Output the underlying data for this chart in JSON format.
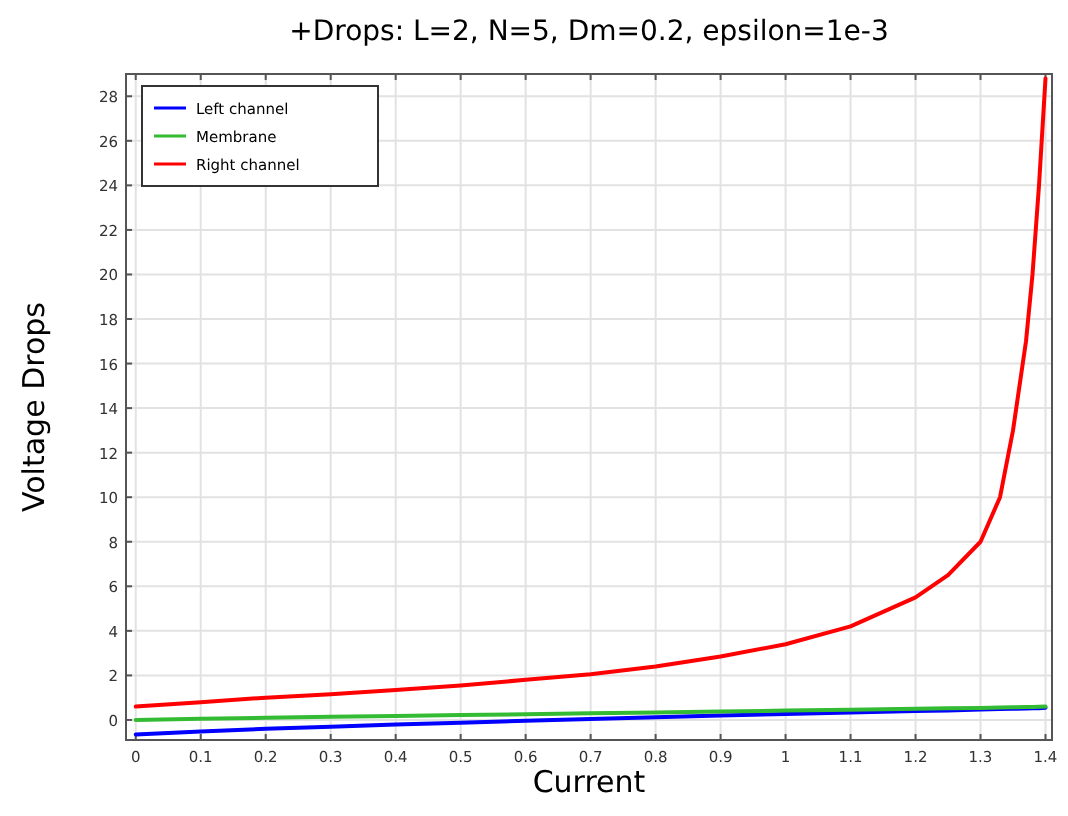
{
  "chart_data": {
    "type": "line",
    "title": "+Drops: L=2, N=5, Dm=0.2, epsilon=1e-3",
    "xlabel": "Current",
    "ylabel": "Voltage Drops",
    "x": [
      0,
      0.1,
      0.2,
      0.3,
      0.4,
      0.5,
      0.6,
      0.7,
      0.8,
      0.9,
      1,
      1.1,
      1.2,
      1.25,
      1.3,
      1.33,
      1.35,
      1.37,
      1.38,
      1.39,
      1.4
    ],
    "series": [
      {
        "name": "Left channel",
        "color": "#0000ff",
        "values": [
          -0.65,
          -0.52,
          -0.4,
          -0.3,
          -0.2,
          -0.12,
          -0.04,
          0.04,
          0.12,
          0.2,
          0.27,
          0.33,
          0.4,
          0.43,
          0.47,
          0.49,
          0.5,
          0.51,
          0.52,
          0.53,
          0.55
        ]
      },
      {
        "name": "Membrane",
        "color": "#33bb33",
        "values": [
          0,
          0.05,
          0.1,
          0.14,
          0.18,
          0.22,
          0.26,
          0.3,
          0.34,
          0.38,
          0.42,
          0.46,
          0.5,
          0.52,
          0.54,
          0.56,
          0.57,
          0.58,
          0.58,
          0.59,
          0.6
        ]
      },
      {
        "name": "Right channel",
        "color": "#ff0000",
        "values": [
          0.6,
          0.8,
          1.0,
          1.15,
          1.35,
          1.55,
          1.8,
          2.05,
          2.4,
          2.85,
          3.4,
          4.2,
          5.5,
          6.5,
          8.0,
          10,
          13,
          17,
          20,
          24,
          28.8
        ]
      }
    ],
    "xlim": [
      -0.015,
      1.41
    ],
    "xticks": [
      0,
      0.1,
      0.2,
      0.3,
      0.4,
      0.5,
      0.6,
      0.7,
      0.8,
      0.9,
      1,
      1.1,
      1.2,
      1.3,
      1.4
    ],
    "ylim": [
      -0.9,
      29
    ],
    "yticks": [
      0,
      2,
      4,
      6,
      8,
      10,
      12,
      14,
      16,
      18,
      20,
      22,
      24,
      26,
      28
    ],
    "grid": true,
    "legend": "top left",
    "line_style": "solid"
  }
}
